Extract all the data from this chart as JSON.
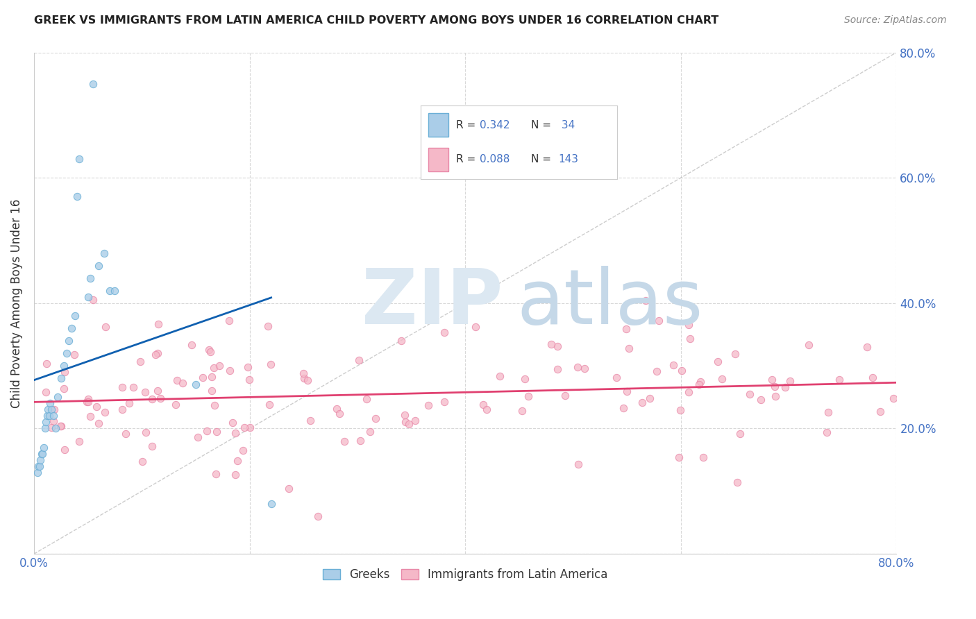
{
  "title": "GREEK VS IMMIGRANTS FROM LATIN AMERICA CHILD POVERTY AMONG BOYS UNDER 16 CORRELATION CHART",
  "source": "Source: ZipAtlas.com",
  "ylabel": "Child Poverty Among Boys Under 16",
  "xlim": [
    0.0,
    0.8
  ],
  "ylim": [
    0.0,
    0.8
  ],
  "color_blue_fill": "#aacde8",
  "color_blue_edge": "#6aafd6",
  "color_pink_fill": "#f5b8c8",
  "color_pink_edge": "#e888a8",
  "color_diag": "#b8b8b8",
  "color_trend_blue": "#1060b0",
  "color_trend_pink": "#e04070",
  "color_tick": "#4472c4",
  "color_grid": "#d8d8d8",
  "background_color": "#ffffff",
  "watermark_zip_color": "#dce8f0",
  "watermark_atlas_color": "#c8dce8"
}
